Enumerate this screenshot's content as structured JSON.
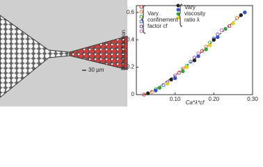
{
  "image": {
    "scale_bar": "30 µm"
  },
  "chart_data": {
    "type": "scatter",
    "x_label": "Ca*λ*cf",
    "y_label": "Breakup fraction",
    "xlim": [
      0,
      0.3
    ],
    "ylim": [
      0,
      0.65
    ],
    "xticks": [
      {
        "value": 0.1,
        "label": "0.10"
      },
      {
        "value": 0.2,
        "label": "0.20"
      },
      {
        "value": 0.3,
        "label": "0.30"
      }
    ],
    "yticks": [
      0,
      0.2,
      0.4,
      0.6
    ],
    "series": [
      {
        "name": "Vary confinement factor cf",
        "marker_colors": [
          "#e03030",
          "#f08020",
          "#40b040",
          "#4060e0",
          "#9040c0",
          "#e060c0"
        ],
        "x": [
          0.02,
          0.04,
          0.05,
          0.07,
          0.08,
          0.1,
          0.11,
          0.12,
          0.13,
          0.14,
          0.15,
          0.16,
          0.17,
          0.18,
          0.19,
          0.2,
          0.21,
          0.22,
          0.24,
          0.26
        ],
        "values": [
          0.0,
          0.02,
          0.04,
          0.07,
          0.09,
          0.14,
          0.16,
          0.19,
          0.21,
          0.24,
          0.27,
          0.3,
          0.32,
          0.35,
          0.38,
          0.41,
          0.44,
          0.47,
          0.5,
          0.56
        ]
      },
      {
        "name": "Vary viscosity ratio λ",
        "marker_colors": [
          "#202020",
          "#3050d0",
          "#30a040",
          "#e0d020"
        ],
        "x": [
          0.03,
          0.05,
          0.06,
          0.08,
          0.09,
          0.1,
          0.12,
          0.13,
          0.15,
          0.16,
          0.18,
          0.19,
          0.2,
          0.21,
          0.23,
          0.25,
          0.27,
          0.28
        ],
        "values": [
          0.01,
          0.03,
          0.05,
          0.08,
          0.11,
          0.12,
          0.17,
          0.2,
          0.25,
          0.28,
          0.33,
          0.36,
          0.4,
          0.42,
          0.48,
          0.52,
          0.58,
          0.6
        ]
      }
    ],
    "fit_line": {
      "color": "#333333",
      "x": [
        0.02,
        0.05,
        0.1,
        0.15,
        0.2,
        0.25,
        0.28
      ],
      "values": [
        0.0,
        0.04,
        0.14,
        0.26,
        0.4,
        0.53,
        0.6
      ]
    }
  }
}
